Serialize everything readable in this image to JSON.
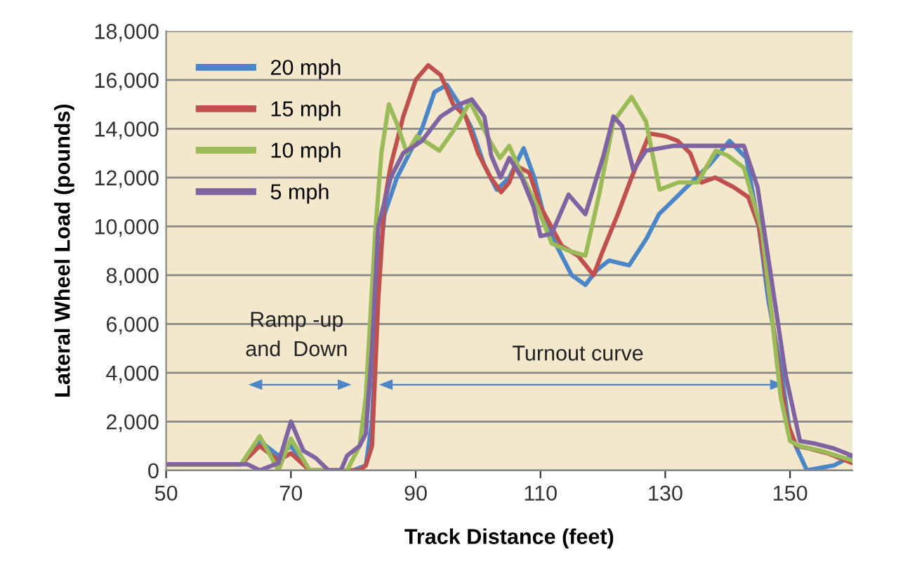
{
  "chart_data": {
    "type": "line",
    "xlabel": "Track Distance (feet)",
    "ylabel": "Lateral Wheel Load (pounds)",
    "xlim": [
      50,
      160
    ],
    "xticks": [
      50,
      70,
      90,
      110,
      130,
      150
    ],
    "ylim": [
      0,
      18000
    ],
    "yticks": [
      0,
      {
        "value": 2000,
        "label": "2,000"
      },
      {
        "value": 4000,
        "label": "4,000"
      },
      {
        "value": 6000,
        "label": "6,000"
      },
      {
        "value": 8000,
        "label": "8,000"
      },
      {
        "value": 10000,
        "label": "10,000"
      },
      {
        "value": 12000,
        "label": "12,000"
      },
      {
        "value": 14000,
        "label": "14,000"
      },
      {
        "value": 16000,
        "label": "16,000"
      },
      {
        "value": 18000,
        "label": "18,000"
      }
    ],
    "grid": "y",
    "legend": "top left",
    "marker": "none",
    "line_style": "solid",
    "annotations": [
      "Ramp -up\nand  Down",
      "Turnout curve"
    ],
    "series": [
      {
        "name": "20 mph",
        "color": "#4a86c8",
        "x": [
          50,
          62,
          65,
          68,
          70,
          73,
          80,
          82,
          83,
          84,
          85,
          87,
          89,
          91,
          93,
          95,
          97,
          99,
          101,
          103,
          105,
          107.3,
          109,
          111,
          113,
          115,
          117.2,
          119,
          121,
          124.2,
          127,
          129,
          131,
          133,
          135,
          137,
          140.3,
          143,
          145,
          146.5,
          148.7,
          150,
          152.7,
          157,
          160
        ],
        "values": [
          250,
          250,
          1200,
          600,
          1000,
          0,
          0,
          200,
          2000,
          8000,
          10500,
          12000,
          13000,
          14000,
          15500,
          15800,
          15000,
          14000,
          12500,
          11500,
          12000,
          13200,
          12000,
          10000,
          9000,
          8000,
          7600,
          8200,
          8600,
          8400,
          9500,
          10500,
          11000,
          11500,
          12000,
          12500,
          13500,
          12800,
          10000,
          7000,
          3900,
          1500,
          0,
          200,
          600
        ]
      },
      {
        "name": "15 mph",
        "color": "#c0504d",
        "x": [
          50,
          62,
          65,
          68,
          70,
          73,
          81,
          82,
          83,
          84,
          85,
          86,
          88,
          90,
          92,
          94,
          96,
          98,
          100,
          102,
          103.7,
          105,
          106,
          108.2,
          110,
          113.4,
          116,
          118.5,
          120,
          122.4,
          124.6,
          127.5,
          130,
          132,
          134,
          135.8,
          138,
          141,
          143.3,
          145,
          146.5,
          148,
          149.5,
          151,
          153,
          156,
          160
        ],
        "values": [
          250,
          250,
          1000,
          400,
          700,
          0,
          0,
          200,
          1000,
          7000,
          11000,
          12500,
          14500,
          16000,
          16600,
          16200,
          15000,
          14500,
          13000,
          12000,
          11400,
          11800,
          12500,
          12200,
          10800,
          9200,
          8800,
          8000,
          9000,
          10500,
          12000,
          13800,
          13700,
          13500,
          13000,
          11800,
          12000,
          11600,
          11200,
          10000,
          7500,
          4500,
          2000,
          1000,
          900,
          700,
          300
        ]
      },
      {
        "name": "10 mph",
        "color": "#9bbb59",
        "x": [
          50,
          62,
          65,
          68,
          70,
          73,
          79,
          81,
          82,
          83.5,
          84.5,
          85.7,
          87,
          88.6,
          90.2,
          92,
          93.8,
          96,
          97.6,
          98.7,
          100.5,
          102.1,
          103.5,
          105,
          107.2,
          109.5,
          111.8,
          114.5,
          117.2,
          119.4,
          121.7,
          124.6,
          126.9,
          129.1,
          132.1,
          135.2,
          138.1,
          140,
          142.6,
          145.5,
          147,
          148.5,
          150,
          151.5,
          155,
          160
        ],
        "values": [
          250,
          250,
          1400,
          0,
          1300,
          0,
          0,
          1000,
          3000,
          9700,
          13000,
          15000,
          14200,
          13000,
          13700,
          13400,
          13100,
          13900,
          14600,
          15100,
          14200,
          13400,
          12800,
          13300,
          12000,
          10800,
          9300,
          9000,
          8800,
          11300,
          14300,
          15300,
          14300,
          11500,
          11800,
          11800,
          13100,
          12900,
          12400,
          9800,
          6500,
          3000,
          1200,
          1000,
          800,
          400
        ]
      },
      {
        "name": "5 mph",
        "color": "#8064a2",
        "x": [
          50,
          63,
          65,
          68,
          70,
          72,
          74,
          76,
          78,
          79,
          81,
          82,
          83,
          84,
          86,
          88,
          91,
          94,
          97,
          99,
          101,
          102.1,
          103.6,
          105,
          107,
          108.9,
          110,
          111.8,
          114.5,
          117.2,
          120.1,
          121.7,
          123.1,
          124.9,
          126.9,
          131.3,
          136,
          142.6,
          144.8,
          147.1,
          149.3,
          151.6,
          153.9,
          157,
          160
        ],
        "values": [
          250,
          250,
          0,
          300,
          2000,
          800,
          500,
          0,
          0,
          600,
          1000,
          1500,
          5000,
          10000,
          12000,
          13000,
          13500,
          14500,
          15000,
          15200,
          14500,
          12900,
          12000,
          12800,
          12000,
          10800,
          9600,
          9700,
          11300,
          10500,
          12900,
          14500,
          14100,
          12300,
          13100,
          13300,
          13300,
          13300,
          11600,
          7700,
          3900,
          1200,
          1100,
          900,
          600
        ]
      }
    ]
  }
}
